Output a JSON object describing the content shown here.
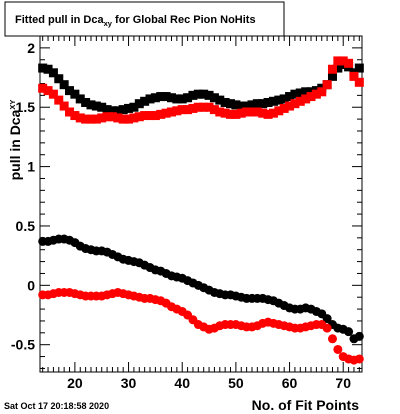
{
  "chart_data": {
    "type": "scatter",
    "title_main": "Fitted pull in Dca",
    "title_sub": "xy",
    "title_rest": " for Global Rec Pion NoHits",
    "xlabel": "No. of Fit Points",
    "ylabel_main": "pull in Dca",
    "ylabel_sub": "XY",
    "xlim": [
      13.5,
      73.5
    ],
    "ylim": [
      -0.73,
      2.1
    ],
    "xticks": [
      20,
      30,
      40,
      50,
      60,
      70
    ],
    "yticks": [
      -0.5,
      0,
      0.5,
      1,
      1.5,
      2
    ],
    "xtick_labels": [
      "20",
      "30",
      "40",
      "50",
      "60",
      "70"
    ],
    "ytick_labels": [
      "-0.5",
      "0",
      "0.5",
      "1",
      "1.5",
      "2"
    ],
    "grid": false,
    "legend": "none",
    "series": [
      {
        "color": "#000000",
        "marker": "square",
        "x": [
          14,
          15,
          16,
          17,
          18,
          19,
          20,
          21,
          22,
          23,
          24,
          25,
          26,
          27,
          28,
          29,
          30,
          31,
          32,
          33,
          34,
          35,
          36,
          37,
          38,
          39,
          40,
          41,
          42,
          43,
          44,
          45,
          46,
          47,
          48,
          49,
          50,
          51,
          52,
          53,
          54,
          55,
          56,
          57,
          58,
          59,
          60,
          61,
          62,
          63,
          64,
          65,
          66,
          67,
          68,
          69,
          70,
          71,
          72,
          73
        ],
        "y": [
          1.83,
          1.82,
          1.79,
          1.74,
          1.69,
          1.64,
          1.61,
          1.57,
          1.54,
          1.52,
          1.51,
          1.5,
          1.48,
          1.47,
          1.47,
          1.48,
          1.49,
          1.5,
          1.53,
          1.55,
          1.57,
          1.58,
          1.59,
          1.59,
          1.58,
          1.57,
          1.57,
          1.58,
          1.6,
          1.61,
          1.61,
          1.6,
          1.58,
          1.56,
          1.54,
          1.53,
          1.52,
          1.51,
          1.51,
          1.52,
          1.53,
          1.53,
          1.54,
          1.55,
          1.56,
          1.57,
          1.59,
          1.61,
          1.62,
          1.63,
          1.63,
          1.64,
          1.66,
          1.69,
          1.76,
          1.83,
          1.86,
          1.84,
          1.79,
          1.83
        ]
      },
      {
        "color": "#ff0000",
        "marker": "square",
        "x": [
          14,
          15,
          16,
          17,
          18,
          19,
          20,
          21,
          22,
          23,
          24,
          25,
          26,
          27,
          28,
          29,
          30,
          31,
          32,
          33,
          34,
          35,
          36,
          37,
          38,
          39,
          40,
          41,
          42,
          43,
          44,
          45,
          46,
          47,
          48,
          49,
          50,
          51,
          52,
          53,
          54,
          55,
          56,
          57,
          58,
          59,
          60,
          61,
          62,
          63,
          64,
          65,
          66,
          67,
          68,
          69,
          70,
          71,
          72,
          73
        ],
        "y": [
          1.66,
          1.64,
          1.61,
          1.56,
          1.51,
          1.46,
          1.43,
          1.41,
          1.4,
          1.4,
          1.4,
          1.41,
          1.42,
          1.42,
          1.41,
          1.4,
          1.4,
          1.41,
          1.42,
          1.43,
          1.43,
          1.43,
          1.44,
          1.45,
          1.46,
          1.47,
          1.48,
          1.48,
          1.49,
          1.5,
          1.5,
          1.5,
          1.48,
          1.46,
          1.45,
          1.44,
          1.44,
          1.45,
          1.46,
          1.46,
          1.46,
          1.45,
          1.44,
          1.45,
          1.47,
          1.49,
          1.51,
          1.53,
          1.55,
          1.57,
          1.59,
          1.61,
          1.63,
          1.69,
          1.82,
          1.89,
          1.89,
          1.87,
          1.76,
          1.71
        ]
      },
      {
        "color": "#000000",
        "marker": "circle",
        "x": [
          14,
          15,
          16,
          17,
          18,
          19,
          20,
          21,
          22,
          23,
          24,
          25,
          26,
          27,
          28,
          29,
          30,
          31,
          32,
          33,
          34,
          35,
          36,
          37,
          38,
          39,
          40,
          41,
          42,
          43,
          44,
          45,
          46,
          47,
          48,
          49,
          50,
          51,
          52,
          53,
          54,
          55,
          56,
          57,
          58,
          59,
          60,
          61,
          62,
          63,
          64,
          65,
          66,
          67,
          68,
          69,
          70,
          71,
          72,
          73
        ],
        "y": [
          0.37,
          0.37,
          0.38,
          0.39,
          0.39,
          0.38,
          0.36,
          0.33,
          0.31,
          0.3,
          0.29,
          0.29,
          0.28,
          0.26,
          0.24,
          0.22,
          0.21,
          0.2,
          0.19,
          0.17,
          0.15,
          0.13,
          0.12,
          0.1,
          0.08,
          0.07,
          0.06,
          0.04,
          0.02,
          0.0,
          -0.02,
          -0.04,
          -0.06,
          -0.07,
          -0.08,
          -0.08,
          -0.09,
          -0.1,
          -0.11,
          -0.11,
          -0.11,
          -0.11,
          -0.12,
          -0.13,
          -0.15,
          -0.17,
          -0.19,
          -0.2,
          -0.2,
          -0.19,
          -0.2,
          -0.22,
          -0.24,
          -0.28,
          -0.33,
          -0.36,
          -0.37,
          -0.39,
          -0.45,
          -0.43
        ]
      },
      {
        "color": "#ff0000",
        "marker": "circle",
        "x": [
          14,
          15,
          16,
          17,
          18,
          19,
          20,
          21,
          22,
          23,
          24,
          25,
          26,
          27,
          28,
          29,
          30,
          31,
          32,
          33,
          34,
          35,
          36,
          37,
          38,
          39,
          40,
          41,
          42,
          43,
          44,
          45,
          46,
          47,
          48,
          49,
          50,
          51,
          52,
          53,
          54,
          55,
          56,
          57,
          58,
          59,
          60,
          61,
          62,
          63,
          64,
          65,
          66,
          67,
          68,
          69,
          70,
          71,
          72,
          73
        ],
        "y": [
          -0.08,
          -0.08,
          -0.07,
          -0.06,
          -0.06,
          -0.06,
          -0.07,
          -0.08,
          -0.09,
          -0.09,
          -0.09,
          -0.09,
          -0.08,
          -0.07,
          -0.06,
          -0.07,
          -0.08,
          -0.09,
          -0.1,
          -0.11,
          -0.11,
          -0.12,
          -0.13,
          -0.15,
          -0.18,
          -0.2,
          -0.22,
          -0.25,
          -0.29,
          -0.33,
          -0.35,
          -0.37,
          -0.36,
          -0.34,
          -0.33,
          -0.33,
          -0.33,
          -0.34,
          -0.35,
          -0.35,
          -0.34,
          -0.32,
          -0.31,
          -0.32,
          -0.33,
          -0.34,
          -0.35,
          -0.36,
          -0.36,
          -0.35,
          -0.34,
          -0.33,
          -0.33,
          -0.36,
          -0.45,
          -0.54,
          -0.6,
          -0.62,
          -0.63,
          -0.62
        ]
      }
    ],
    "timestamp": "Sat Oct 17 20:18:58 2020"
  }
}
